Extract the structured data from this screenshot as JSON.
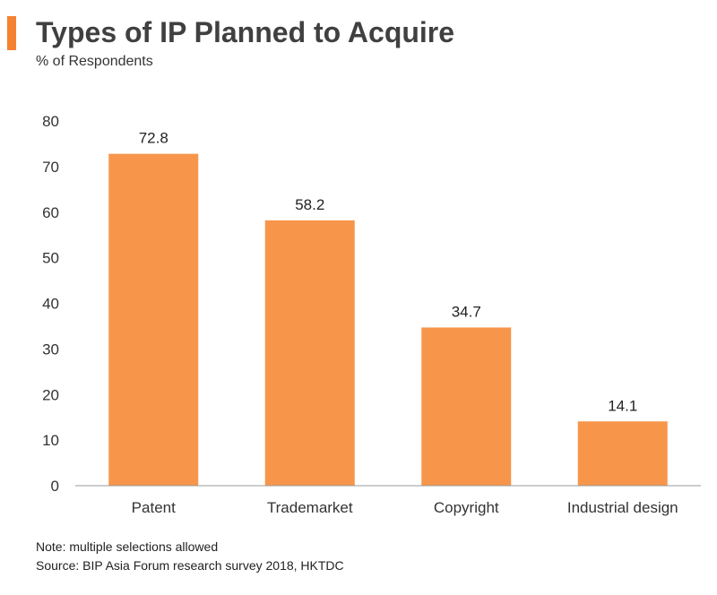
{
  "header": {
    "title": "Types of IP Planned to Acquire",
    "subtitle": "% of Respondents"
  },
  "colors": {
    "accent": "#F58233",
    "bar": "#F7964A",
    "axis": "#999999"
  },
  "chart_data": {
    "type": "bar",
    "categories": [
      "Patent",
      "Trademarket",
      "Copyright",
      "Industrial design"
    ],
    "values": [
      72.8,
      58.2,
      34.7,
      14.1
    ],
    "data_labels": [
      "72.8",
      "58.2",
      "34.7",
      "14.1"
    ],
    "title": "Types of IP Planned to Acquire",
    "subtitle": "% of Respondents",
    "xlabel": "",
    "ylabel": "",
    "ylim": [
      0,
      80
    ],
    "yticks": [
      "0",
      "10",
      "20",
      "30",
      "40",
      "50",
      "60",
      "70",
      "80"
    ],
    "grid": false,
    "legend": "none"
  },
  "footer": {
    "note": "Note: multiple selections allowed",
    "source": "Source: BIP Asia Forum research survey 2018, HKTDC"
  }
}
